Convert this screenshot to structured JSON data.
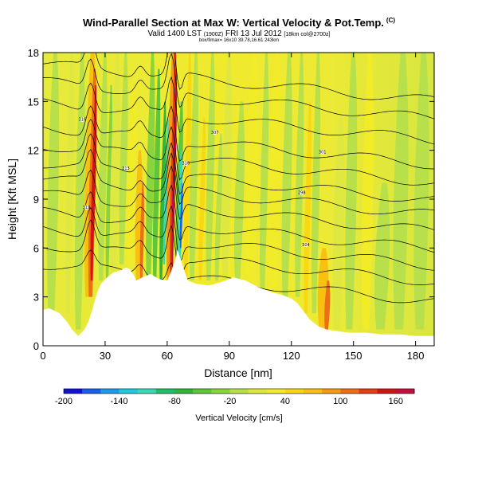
{
  "header": {
    "title": "Wind-Parallel Section at Max W: Vertical Velocity & Pot.Temp.",
    "copyright": "(C)",
    "valid": "Valid 1400 LST",
    "valid_small": "(1900Z)",
    "date": "FRI 13 Jul 2012",
    "grid": "[18km col@2700z]",
    "sub_info": "box/fimax= 16x10 39.78,16.61 243km"
  },
  "chart_data": {
    "type": "heatmap",
    "title": "Wind-Parallel Section at Max W: Vertical Velocity & Pot.Temp.",
    "xlabel": "Distance [nm]",
    "ylabel": "Height [Kft MSL]",
    "xlim": [
      0,
      189
    ],
    "ylim": [
      0,
      18
    ],
    "x_ticks": [
      "0",
      "30",
      "60",
      "90",
      "120",
      "150",
      "180"
    ],
    "y_ticks": [
      "0",
      "3",
      "6",
      "9",
      "12",
      "15",
      "18"
    ],
    "colorbar": {
      "label": "Vertical Velocity [cm/s]",
      "min": -200,
      "max": 180,
      "tick_labels": [
        "-200",
        "-140",
        "-80",
        "-20",
        "40",
        "100",
        "160"
      ],
      "colors": [
        "#1010d8",
        "#1a5fe8",
        "#1f9ae8",
        "#22c8e0",
        "#3cd8b4",
        "#23bd6c",
        "#32b43a",
        "#5ec63a",
        "#8ad43e",
        "#b8e04a",
        "#dfe840",
        "#f2ec28",
        "#f8d812",
        "#f8c010",
        "#f49a18",
        "#ec6e18",
        "#e04014",
        "#d41414",
        "#c01040"
      ]
    },
    "background_value_range": [
      -10,
      40
    ],
    "max_updraft_cm_s": 180,
    "max_downdraft_cm_s": -170,
    "features": [
      {
        "name": "updraft",
        "x_nm": 23,
        "w_cm_s": 150,
        "top_kft": 16
      },
      {
        "name": "updraft",
        "x_nm": 47,
        "w_cm_s": 100,
        "top_kft": 10
      },
      {
        "name": "updraft",
        "x_nm": 62,
        "w_cm_s": 180,
        "top_kft": 18
      },
      {
        "name": "downdraft",
        "x_nm": 66,
        "w_cm_s": -170,
        "top_kft": 12
      },
      {
        "name": "downdraft",
        "x_nm": 58,
        "w_cm_s": -100,
        "top_kft": 14
      },
      {
        "name": "updraft",
        "x_nm": 137,
        "w_cm_s": 110,
        "top_kft": 4
      }
    ],
    "terrain_kft": [
      [
        0,
        2.2
      ],
      [
        3,
        2.3
      ],
      [
        8,
        2.0
      ],
      [
        10,
        1.7
      ],
      [
        12,
        1.4
      ],
      [
        14,
        1.0
      ],
      [
        17,
        0.6
      ],
      [
        20,
        1.0
      ],
      [
        22,
        1.5
      ],
      [
        24,
        2.3
      ],
      [
        26,
        3.2
      ],
      [
        28,
        3.8
      ],
      [
        31,
        4.2
      ],
      [
        34,
        4.5
      ],
      [
        37,
        4.6
      ],
      [
        40,
        4.8
      ],
      [
        42,
        4.7
      ],
      [
        44,
        4.3
      ],
      [
        45,
        4.0
      ],
      [
        48,
        4.2
      ],
      [
        52,
        4.4
      ],
      [
        56,
        4.1
      ],
      [
        60,
        4.0
      ],
      [
        62,
        4.6
      ],
      [
        64,
        5.3
      ],
      [
        65,
        5.9
      ],
      [
        66,
        5.5
      ],
      [
        68,
        4.7
      ],
      [
        70,
        4.0
      ],
      [
        74,
        3.8
      ],
      [
        80,
        3.7
      ],
      [
        86,
        3.9
      ],
      [
        92,
        4.2
      ],
      [
        98,
        4.0
      ],
      [
        104,
        3.6
      ],
      [
        110,
        3.3
      ],
      [
        116,
        3.1
      ],
      [
        120,
        2.9
      ],
      [
        123,
        2.6
      ],
      [
        126,
        2.1
      ],
      [
        129,
        1.6
      ],
      [
        133,
        1.2
      ],
      [
        137,
        1.0
      ],
      [
        142,
        0.9
      ],
      [
        148,
        0.8
      ],
      [
        156,
        0.8
      ],
      [
        164,
        0.7
      ],
      [
        172,
        0.7
      ],
      [
        180,
        0.6
      ],
      [
        189,
        0.6
      ]
    ]
  },
  "colorbar_ticks": [
    {
      "label": "-200"
    },
    {
      "label": "-140"
    },
    {
      "label": "-80"
    },
    {
      "label": "-20"
    },
    {
      "label": "40"
    },
    {
      "label": "100"
    },
    {
      "label": "160"
    }
  ],
  "contour_labels": [
    "319",
    "316",
    "313",
    "310",
    "307",
    "304",
    "301",
    "298"
  ]
}
